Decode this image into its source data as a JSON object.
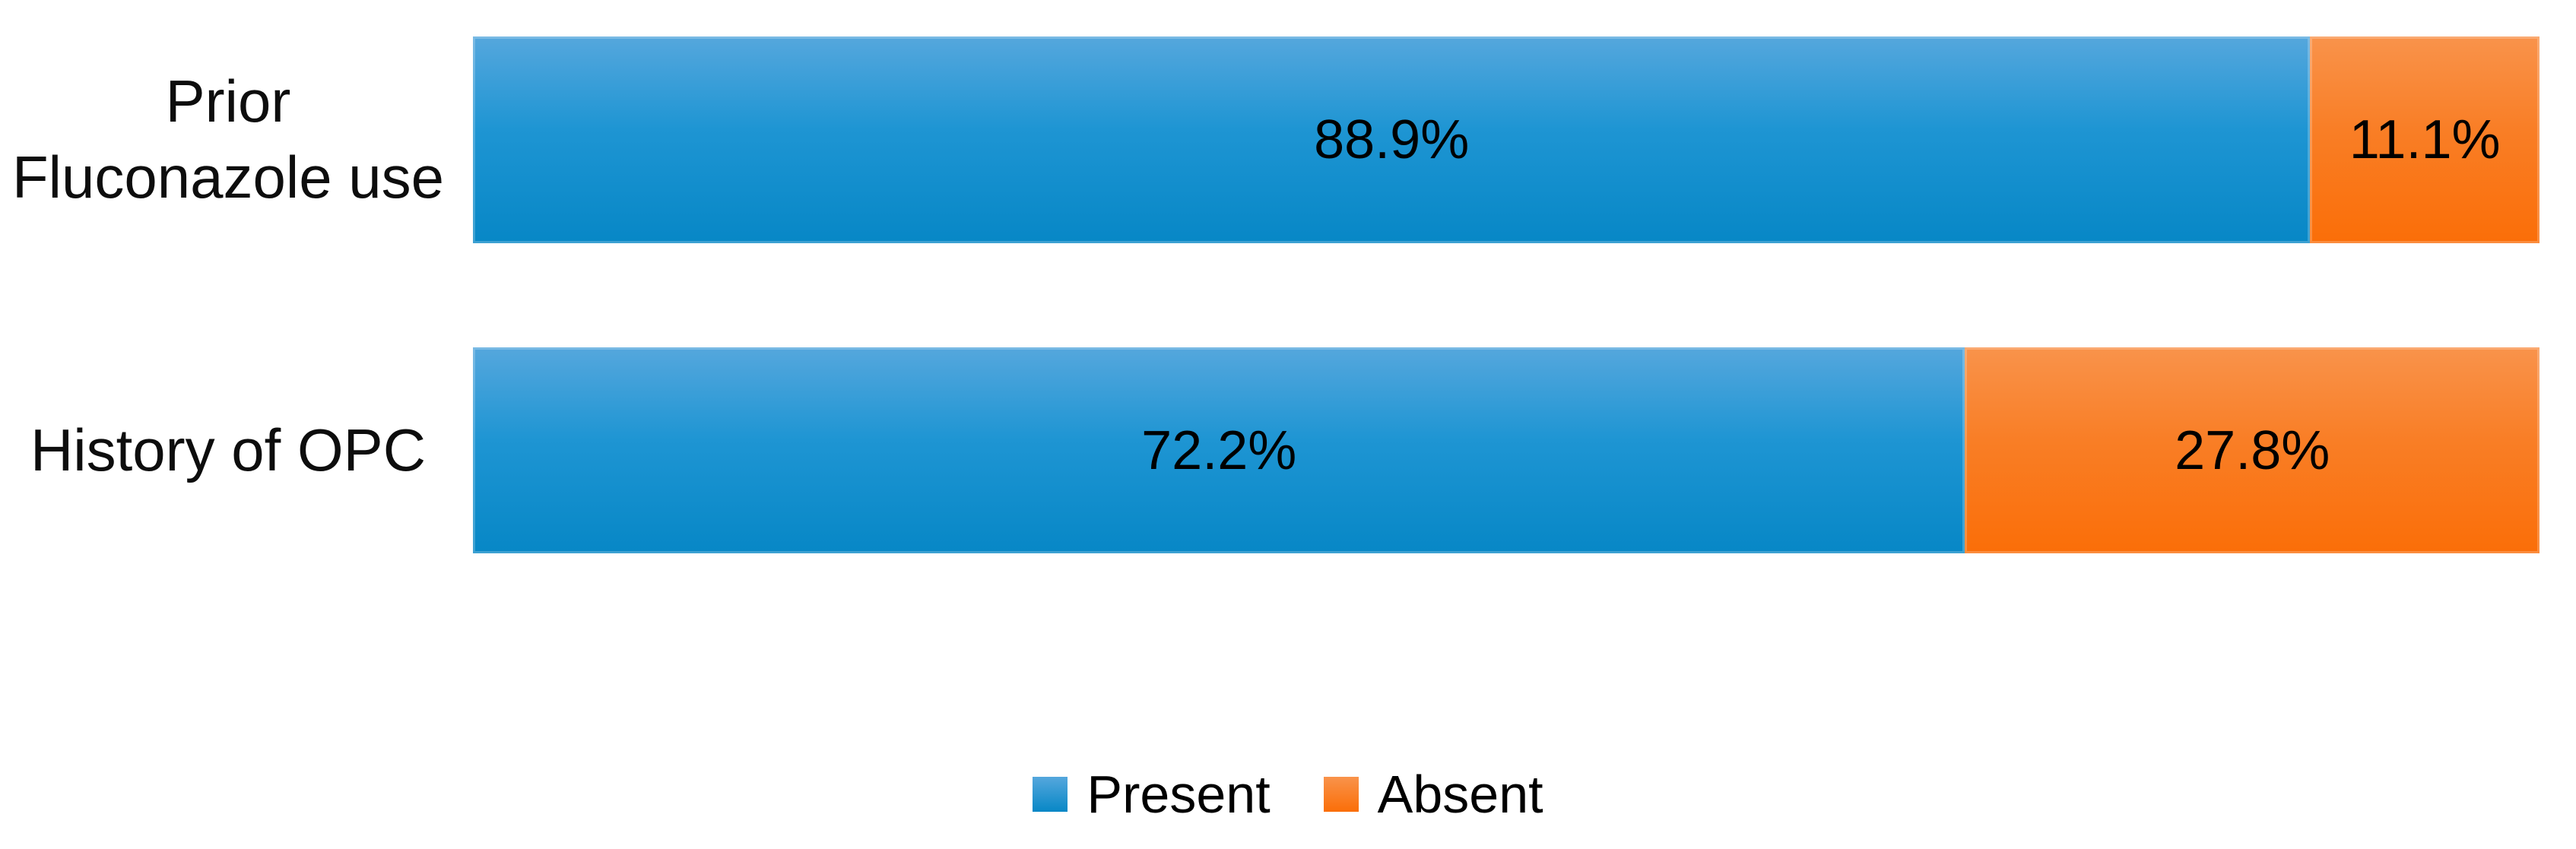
{
  "chart_data": {
    "type": "bar",
    "orientation": "horizontal",
    "stacked": true,
    "unit": "%",
    "title": "",
    "xlabel": "",
    "ylabel": "",
    "xlim": [
      0,
      100
    ],
    "grid": false,
    "legend_position": "bottom-center",
    "categories": [
      "Prior Fluconazole use",
      "History of OPC"
    ],
    "series": [
      {
        "name": "Present",
        "values": [
          88.9,
          72.2
        ]
      },
      {
        "name": "Absent",
        "values": [
          11.1,
          27.8
        ]
      }
    ],
    "data_labels": [
      [
        "88.9%",
        "11.1%"
      ],
      [
        "72.2%",
        "27.8%"
      ]
    ]
  },
  "rows": [
    {
      "label_line1": "Prior",
      "label_line2": "Fluconazole use",
      "present_pct": 88.9,
      "absent_pct": 11.1,
      "present_label": "88.9%",
      "absent_label": "11.1%"
    },
    {
      "label_line1": "History of OPC",
      "label_line2": "",
      "present_pct": 72.2,
      "absent_pct": 27.8,
      "present_label": "72.2%",
      "absent_label": "27.8%"
    }
  ],
  "legend": {
    "present_label": "Present",
    "absent_label": "Absent"
  },
  "colors": {
    "present_top": "#55a7dd",
    "present_mid": "#1e95d3",
    "present_bottom": "#0787c6",
    "absent_top": "#f9934b",
    "absent_mid": "#f97e26",
    "absent_bottom": "#fa6e08",
    "label_text": "#000000"
  }
}
